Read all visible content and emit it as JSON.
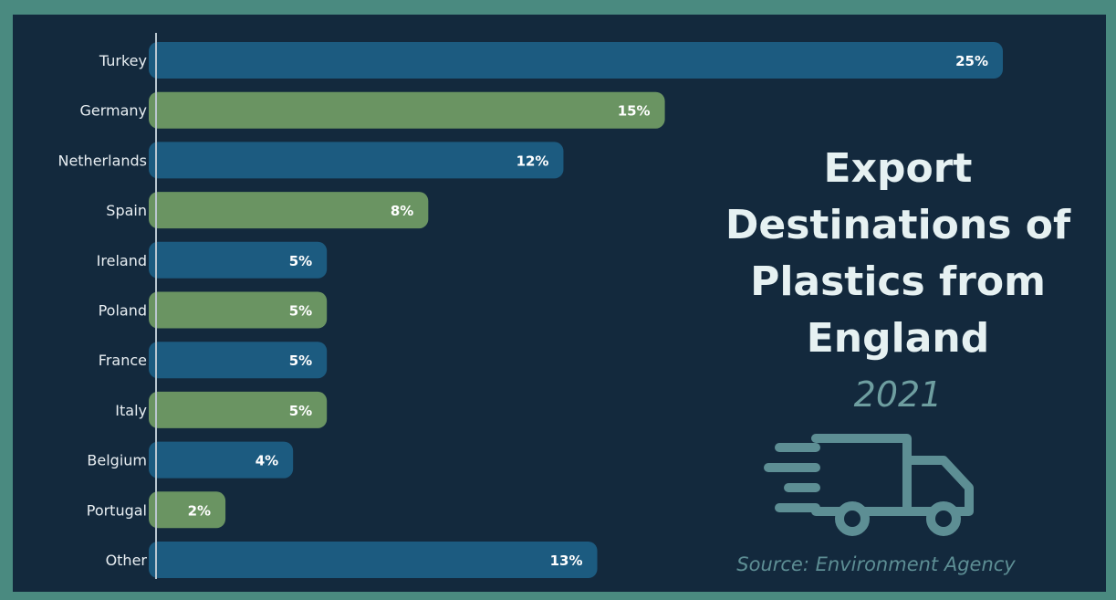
{
  "title_lines": [
    "Export",
    "Destinations of",
    "Plastics from",
    "England"
  ],
  "year": "2021",
  "source": "Source: Environment Agency",
  "colors": {
    "background": "#13293d",
    "border": "#4a8a80",
    "bar_blue": "#1c5b80",
    "bar_green": "#6a9462",
    "title": "#e6f1f2",
    "muted": "#6e9ea0"
  },
  "icons": [
    "truck-icon"
  ],
  "chart_data": {
    "type": "bar",
    "orientation": "horizontal",
    "categories": [
      "Turkey",
      "Germany",
      "Netherlands",
      "Spain",
      "Ireland",
      "Poland",
      "France",
      "Italy",
      "Belgium",
      "Portugal",
      "Other"
    ],
    "values": [
      25,
      15,
      12,
      8,
      5,
      5,
      5,
      5,
      4,
      2,
      13
    ],
    "value_labels": [
      "25%",
      "15%",
      "12%",
      "8%",
      "5%",
      "5%",
      "5%",
      "5%",
      "4%",
      "2%",
      "13%"
    ],
    "unit": "%",
    "bar_colors": [
      "#1c5b80",
      "#6a9462",
      "#1c5b80",
      "#6a9462",
      "#1c5b80",
      "#6a9462",
      "#1c5b80",
      "#6a9462",
      "#1c5b80",
      "#6a9462",
      "#1c5b80"
    ],
    "xlim": [
      0,
      25
    ],
    "grid": false,
    "legend": "none"
  }
}
